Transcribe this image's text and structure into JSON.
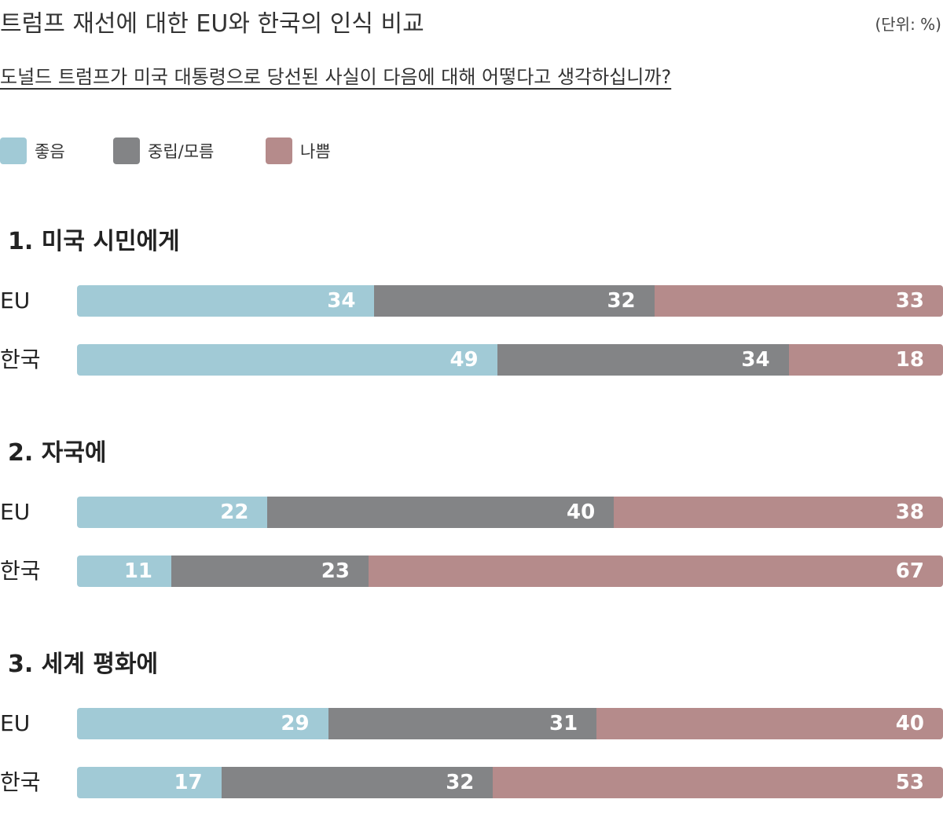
{
  "header": {
    "title": "트럼프 재선에 대한 EU와 한국의 인식 비교",
    "unit": "(단위: %)",
    "question": "도널드 트럼프가 미국 대통령으로 당선된 사실이 다음에 대해 어떻다고 생각하십니까?"
  },
  "legend": [
    {
      "label": "좋음",
      "color": "#a1cad6"
    },
    {
      "label": "중립/모름",
      "color": "#838486"
    },
    {
      "label": "나쁨",
      "color": "#b58b8b"
    }
  ],
  "chart_data": {
    "type": "bar",
    "orientation": "horizontal",
    "stacked": true,
    "series_names": [
      "좋음",
      "중립/모름",
      "나쁨"
    ],
    "colors": [
      "#a1cad6",
      "#838486",
      "#b58b8b"
    ],
    "groups": [
      {
        "title": "1. 미국 시민에게",
        "rows": [
          {
            "label": "EU",
            "values": [
              34,
              32,
              33
            ]
          },
          {
            "label": "한국",
            "values": [
              49,
              34,
              18
            ]
          }
        ]
      },
      {
        "title": "2. 자국에",
        "rows": [
          {
            "label": "EU",
            "values": [
              22,
              40,
              38
            ]
          },
          {
            "label": "한국",
            "values": [
              11,
              23,
              67
            ]
          }
        ]
      },
      {
        "title": "3. 세계 평화에",
        "rows": [
          {
            "label": "EU",
            "values": [
              29,
              31,
              40
            ]
          },
          {
            "label": "한국",
            "values": [
              17,
              32,
              53
            ]
          }
        ]
      }
    ]
  }
}
